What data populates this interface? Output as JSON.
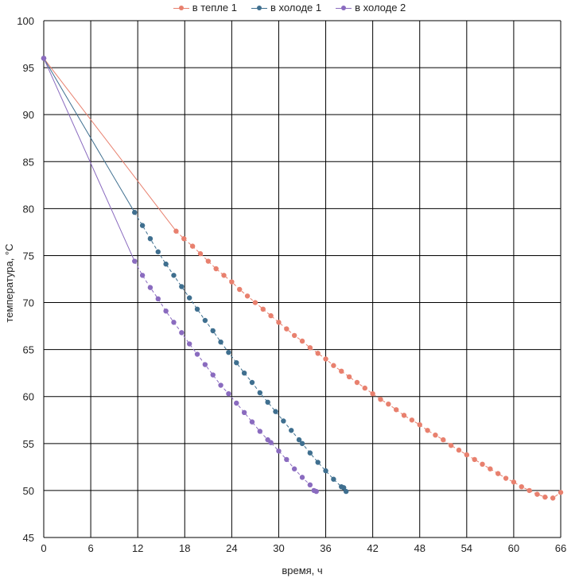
{
  "chart_data": {
    "type": "line",
    "xlabel": "время, ч",
    "ylabel": "температура, °С",
    "xlim": [
      0,
      66
    ],
    "ylim": [
      45,
      100
    ],
    "xticks": [
      0,
      6,
      12,
      18,
      24,
      30,
      36,
      42,
      48,
      54,
      60,
      66
    ],
    "yticks": [
      45,
      50,
      55,
      60,
      65,
      70,
      75,
      80,
      85,
      90,
      95,
      100
    ],
    "grid": true,
    "legend_position": "top",
    "series": [
      {
        "name": "в тепле 1",
        "color": "#e8806e",
        "first_segment_dashed": false,
        "points": [
          [
            0,
            96
          ],
          [
            16.9,
            77.6
          ],
          [
            17.9,
            76.8
          ],
          [
            19,
            76
          ],
          [
            20,
            75.2
          ],
          [
            21,
            74.4
          ],
          [
            22,
            73.6
          ],
          [
            23,
            72.9
          ],
          [
            24,
            72.2
          ],
          [
            25,
            71.4
          ],
          [
            26,
            70.7
          ],
          [
            27,
            70
          ],
          [
            28,
            69.3
          ],
          [
            29,
            68.6
          ],
          [
            30,
            67.9
          ],
          [
            31,
            67.2
          ],
          [
            32,
            66.5
          ],
          [
            33,
            65.9
          ],
          [
            34,
            65.2
          ],
          [
            35,
            64.6
          ],
          [
            36,
            64
          ],
          [
            37,
            63.3
          ],
          [
            38,
            62.7
          ],
          [
            39,
            62.1
          ],
          [
            40,
            61.5
          ],
          [
            41,
            60.9
          ],
          [
            42,
            60.3
          ],
          [
            43,
            59.7
          ],
          [
            44,
            59.2
          ],
          [
            45,
            58.6
          ],
          [
            46,
            58
          ],
          [
            47,
            57.5
          ],
          [
            48,
            57
          ],
          [
            49,
            56.4
          ],
          [
            50,
            55.9
          ],
          [
            51,
            55.4
          ],
          [
            52,
            54.8
          ],
          [
            53,
            54.3
          ],
          [
            54,
            53.8
          ],
          [
            55,
            53.3
          ],
          [
            56,
            52.8
          ],
          [
            57,
            52.3
          ],
          [
            58,
            51.8
          ],
          [
            59,
            51.3
          ],
          [
            60,
            50.9
          ],
          [
            61,
            50.4
          ],
          [
            62,
            50
          ],
          [
            63,
            49.6
          ],
          [
            64,
            49.3
          ],
          [
            65,
            49.2
          ],
          [
            66,
            49.8
          ]
        ]
      },
      {
        "name": "в холоде 1",
        "color": "#3f6f8f",
        "first_segment_dashed": false,
        "points": [
          [
            0,
            96
          ],
          [
            11.6,
            79.6
          ],
          [
            12.6,
            78.2
          ],
          [
            13.6,
            76.8
          ],
          [
            14.6,
            75.4
          ],
          [
            15.6,
            74.1
          ],
          [
            16.6,
            72.9
          ],
          [
            17.6,
            71.7
          ],
          [
            18.6,
            70.5
          ],
          [
            19.6,
            69.3
          ],
          [
            20.6,
            68.1
          ],
          [
            21.6,
            67
          ],
          [
            22.6,
            65.8
          ],
          [
            23.6,
            64.7
          ],
          [
            24.6,
            63.6
          ],
          [
            25.6,
            62.5
          ],
          [
            26.6,
            61.5
          ],
          [
            27.6,
            60.4
          ],
          [
            28.6,
            59.4
          ],
          [
            29.6,
            58.4
          ],
          [
            30.6,
            57.4
          ],
          [
            31.6,
            56.4
          ],
          [
            32.6,
            55.4
          ],
          [
            33,
            55
          ],
          [
            34,
            54
          ],
          [
            35,
            53
          ],
          [
            36,
            52.1
          ],
          [
            37,
            51.2
          ],
          [
            38,
            50.4
          ],
          [
            38.3,
            50.3
          ],
          [
            38.6,
            49.9
          ]
        ]
      },
      {
        "name": "в холоде 2",
        "color": "#8a6bbf",
        "first_segment_dashed": false,
        "points": [
          [
            0,
            96
          ],
          [
            11.6,
            74.4
          ],
          [
            12.6,
            72.9
          ],
          [
            13.6,
            71.6
          ],
          [
            14.6,
            70.4
          ],
          [
            15.6,
            69.1
          ],
          [
            16.6,
            67.9
          ],
          [
            17.6,
            66.8
          ],
          [
            18.6,
            65.6
          ],
          [
            19.6,
            64.5
          ],
          [
            20.6,
            63.4
          ],
          [
            21.6,
            62.3
          ],
          [
            22.6,
            61.2
          ],
          [
            23.6,
            60.3
          ],
          [
            24.6,
            59.3
          ],
          [
            25.6,
            58.3
          ],
          [
            26.6,
            57.3
          ],
          [
            27.6,
            56.3
          ],
          [
            28.6,
            55.4
          ],
          [
            29,
            55.1
          ],
          [
            30,
            54.2
          ],
          [
            31,
            53.3
          ],
          [
            32,
            52.3
          ],
          [
            33,
            51.4
          ],
          [
            34,
            50.6
          ],
          [
            34.5,
            50
          ],
          [
            34.8,
            49.9
          ]
        ]
      }
    ]
  }
}
